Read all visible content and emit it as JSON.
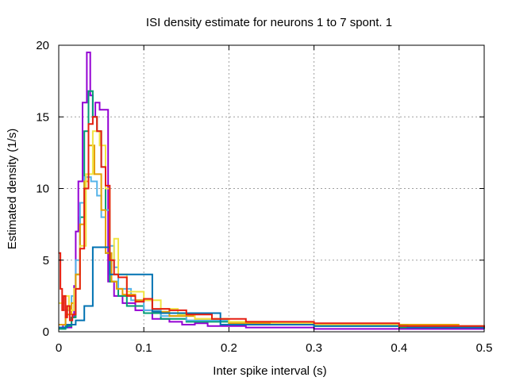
{
  "chart_data": {
    "type": "line",
    "step": true,
    "title": "ISI density estimate for neurons 1 to 7 spont. 1",
    "xlabel": "Inter spike interval (s)",
    "ylabel": "Estimated density (1/s)",
    "xlim": [
      0,
      0.5
    ],
    "ylim": [
      0,
      20
    ],
    "grid": true,
    "legend": "none",
    "xticks": [
      0,
      0.1,
      0.2,
      0.3,
      0.4,
      0.5
    ],
    "xtick_labels": [
      "0",
      "0.1",
      "0.2",
      "0.3",
      "0.4",
      "0.5"
    ],
    "yticks": [
      0,
      5,
      10,
      15,
      20
    ],
    "ytick_labels": [
      "0",
      "5",
      "10",
      "15",
      "20"
    ],
    "series": [
      {
        "color": "#9400d3",
        "x": [
          0.0,
          0.005,
          0.01,
          0.015,
          0.018,
          0.02,
          0.023,
          0.028,
          0.033,
          0.037,
          0.04,
          0.043,
          0.048,
          0.058,
          0.065,
          0.075,
          0.09,
          0.11,
          0.13,
          0.145,
          0.16,
          0.175,
          0.22,
          0.3,
          0.42,
          0.5
        ],
        "y": [
          0.3,
          0.5,
          0.3,
          1.0,
          3.2,
          7.0,
          10.5,
          16.0,
          19.5,
          16.5,
          15.0,
          16.0,
          15.5,
          3.5,
          2.5,
          2.0,
          1.5,
          0.9,
          0.7,
          0.5,
          0.6,
          0.4,
          0.3,
          0.2,
          0.2,
          0.2
        ]
      },
      {
        "color": "#009e73",
        "x": [
          0.0,
          0.008,
          0.015,
          0.02,
          0.025,
          0.03,
          0.035,
          0.04,
          0.045,
          0.05,
          0.055,
          0.06,
          0.07,
          0.08,
          0.1,
          0.12,
          0.15,
          0.2,
          0.3,
          0.4,
          0.5
        ],
        "y": [
          0.2,
          0.4,
          1.0,
          4.0,
          8.0,
          14.0,
          16.8,
          15.0,
          14.0,
          11.5,
          5.5,
          3.5,
          2.5,
          1.8,
          1.3,
          0.9,
          0.7,
          0.5,
          0.4,
          0.3,
          0.2
        ]
      },
      {
        "color": "#56b4e9",
        "x": [
          0.0,
          0.008,
          0.015,
          0.02,
          0.025,
          0.03,
          0.038,
          0.045,
          0.05,
          0.055,
          0.06,
          0.065,
          0.07,
          0.085,
          0.1,
          0.12,
          0.15,
          0.2,
          0.3,
          0.4,
          0.5
        ],
        "y": [
          0.5,
          1.5,
          2.5,
          5.0,
          9.0,
          10.8,
          10.5,
          9.5,
          8.0,
          8.5,
          6.0,
          4.5,
          3.0,
          2.2,
          1.5,
          1.1,
          0.8,
          0.6,
          0.5,
          0.4,
          0.3
        ]
      },
      {
        "color": "#e69f00",
        "x": [
          0.0,
          0.008,
          0.015,
          0.02,
          0.025,
          0.03,
          0.035,
          0.042,
          0.05,
          0.055,
          0.062,
          0.068,
          0.075,
          0.09,
          0.11,
          0.13,
          0.16,
          0.2,
          0.3,
          0.4,
          0.47,
          0.5
        ],
        "y": [
          0.5,
          1.2,
          2.0,
          4.0,
          7.5,
          10.5,
          13.0,
          11.0,
          8.5,
          5.5,
          3.5,
          3.0,
          2.6,
          2.2,
          1.4,
          1.1,
          0.9,
          0.6,
          0.5,
          0.5,
          0.4,
          0.3
        ]
      },
      {
        "color": "#f0e442",
        "x": [
          0.0,
          0.006,
          0.012,
          0.018,
          0.025,
          0.032,
          0.04,
          0.048,
          0.055,
          0.06,
          0.065,
          0.07,
          0.08,
          0.1,
          0.12,
          0.14,
          0.16,
          0.2,
          0.25,
          0.3,
          0.4,
          0.5
        ],
        "y": [
          2.0,
          2.5,
          1.5,
          3.0,
          6.0,
          11.0,
          14.0,
          13.0,
          10.0,
          5.0,
          6.5,
          4.0,
          2.8,
          2.2,
          1.6,
          1.2,
          0.9,
          0.7,
          0.6,
          0.5,
          0.4,
          0.3
        ]
      },
      {
        "color": "#0072b2",
        "x": [
          0.0,
          0.01,
          0.02,
          0.03,
          0.04,
          0.05,
          0.06,
          0.07,
          0.085,
          0.1,
          0.11,
          0.12,
          0.15,
          0.19,
          0.23,
          0.3,
          0.41,
          0.5
        ],
        "y": [
          0.3,
          0.5,
          0.8,
          1.8,
          5.9,
          5.9,
          4.0,
          4.0,
          4.0,
          4.0,
          1.4,
          1.3,
          1.3,
          0.5,
          0.5,
          0.4,
          0.3,
          0.2
        ]
      },
      {
        "color": "#e51e10",
        "x": [
          0.0,
          0.002,
          0.004,
          0.006,
          0.008,
          0.01,
          0.013,
          0.016,
          0.02,
          0.025,
          0.03,
          0.035,
          0.04,
          0.045,
          0.05,
          0.055,
          0.06,
          0.065,
          0.07,
          0.08,
          0.09,
          0.1,
          0.11,
          0.13,
          0.15,
          0.18,
          0.22,
          0.3,
          0.4,
          0.5
        ],
        "y": [
          5.5,
          3.0,
          1.5,
          2.5,
          1.0,
          1.8,
          0.8,
          1.2,
          3.0,
          5.8,
          10.0,
          14.5,
          15.0,
          14.0,
          11.5,
          10.2,
          5.0,
          4.0,
          3.8,
          2.5,
          2.1,
          2.3,
          1.6,
          1.5,
          1.2,
          0.9,
          0.7,
          0.6,
          0.4,
          0.3
        ]
      }
    ]
  }
}
